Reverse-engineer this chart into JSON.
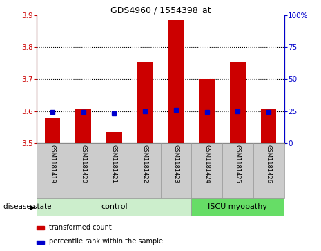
{
  "title": "GDS4960 / 1554398_at",
  "samples": [
    "GSM1181419",
    "GSM1181420",
    "GSM1181421",
    "GSM1181422",
    "GSM1181423",
    "GSM1181424",
    "GSM1181425",
    "GSM1181426"
  ],
  "transformed_counts": [
    3.578,
    3.607,
    3.535,
    3.755,
    3.885,
    3.7,
    3.755,
    3.605
  ],
  "percentile_ranks": [
    24,
    24,
    23,
    25,
    26,
    24,
    25,
    24
  ],
  "ylim_left": [
    3.5,
    3.9
  ],
  "ylim_right": [
    0,
    100
  ],
  "yticks_left": [
    3.5,
    3.6,
    3.7,
    3.8,
    3.9
  ],
  "yticks_right": [
    0,
    25,
    50,
    75,
    100
  ],
  "bar_color": "#cc0000",
  "dot_color": "#0000cc",
  "bar_width": 0.5,
  "n_control": 5,
  "n_disease": 3,
  "control_label": "control",
  "disease_label": "ISCU myopathy",
  "control_color": "#cceecc",
  "disease_color": "#66dd66",
  "disease_state_label": "disease state",
  "legend_bar_label": "transformed count",
  "legend_dot_label": "percentile rank within the sample",
  "left_axis_color": "#cc0000",
  "right_axis_color": "#0000cc",
  "sample_cell_color": "#cccccc",
  "sample_cell_edge": "#999999"
}
